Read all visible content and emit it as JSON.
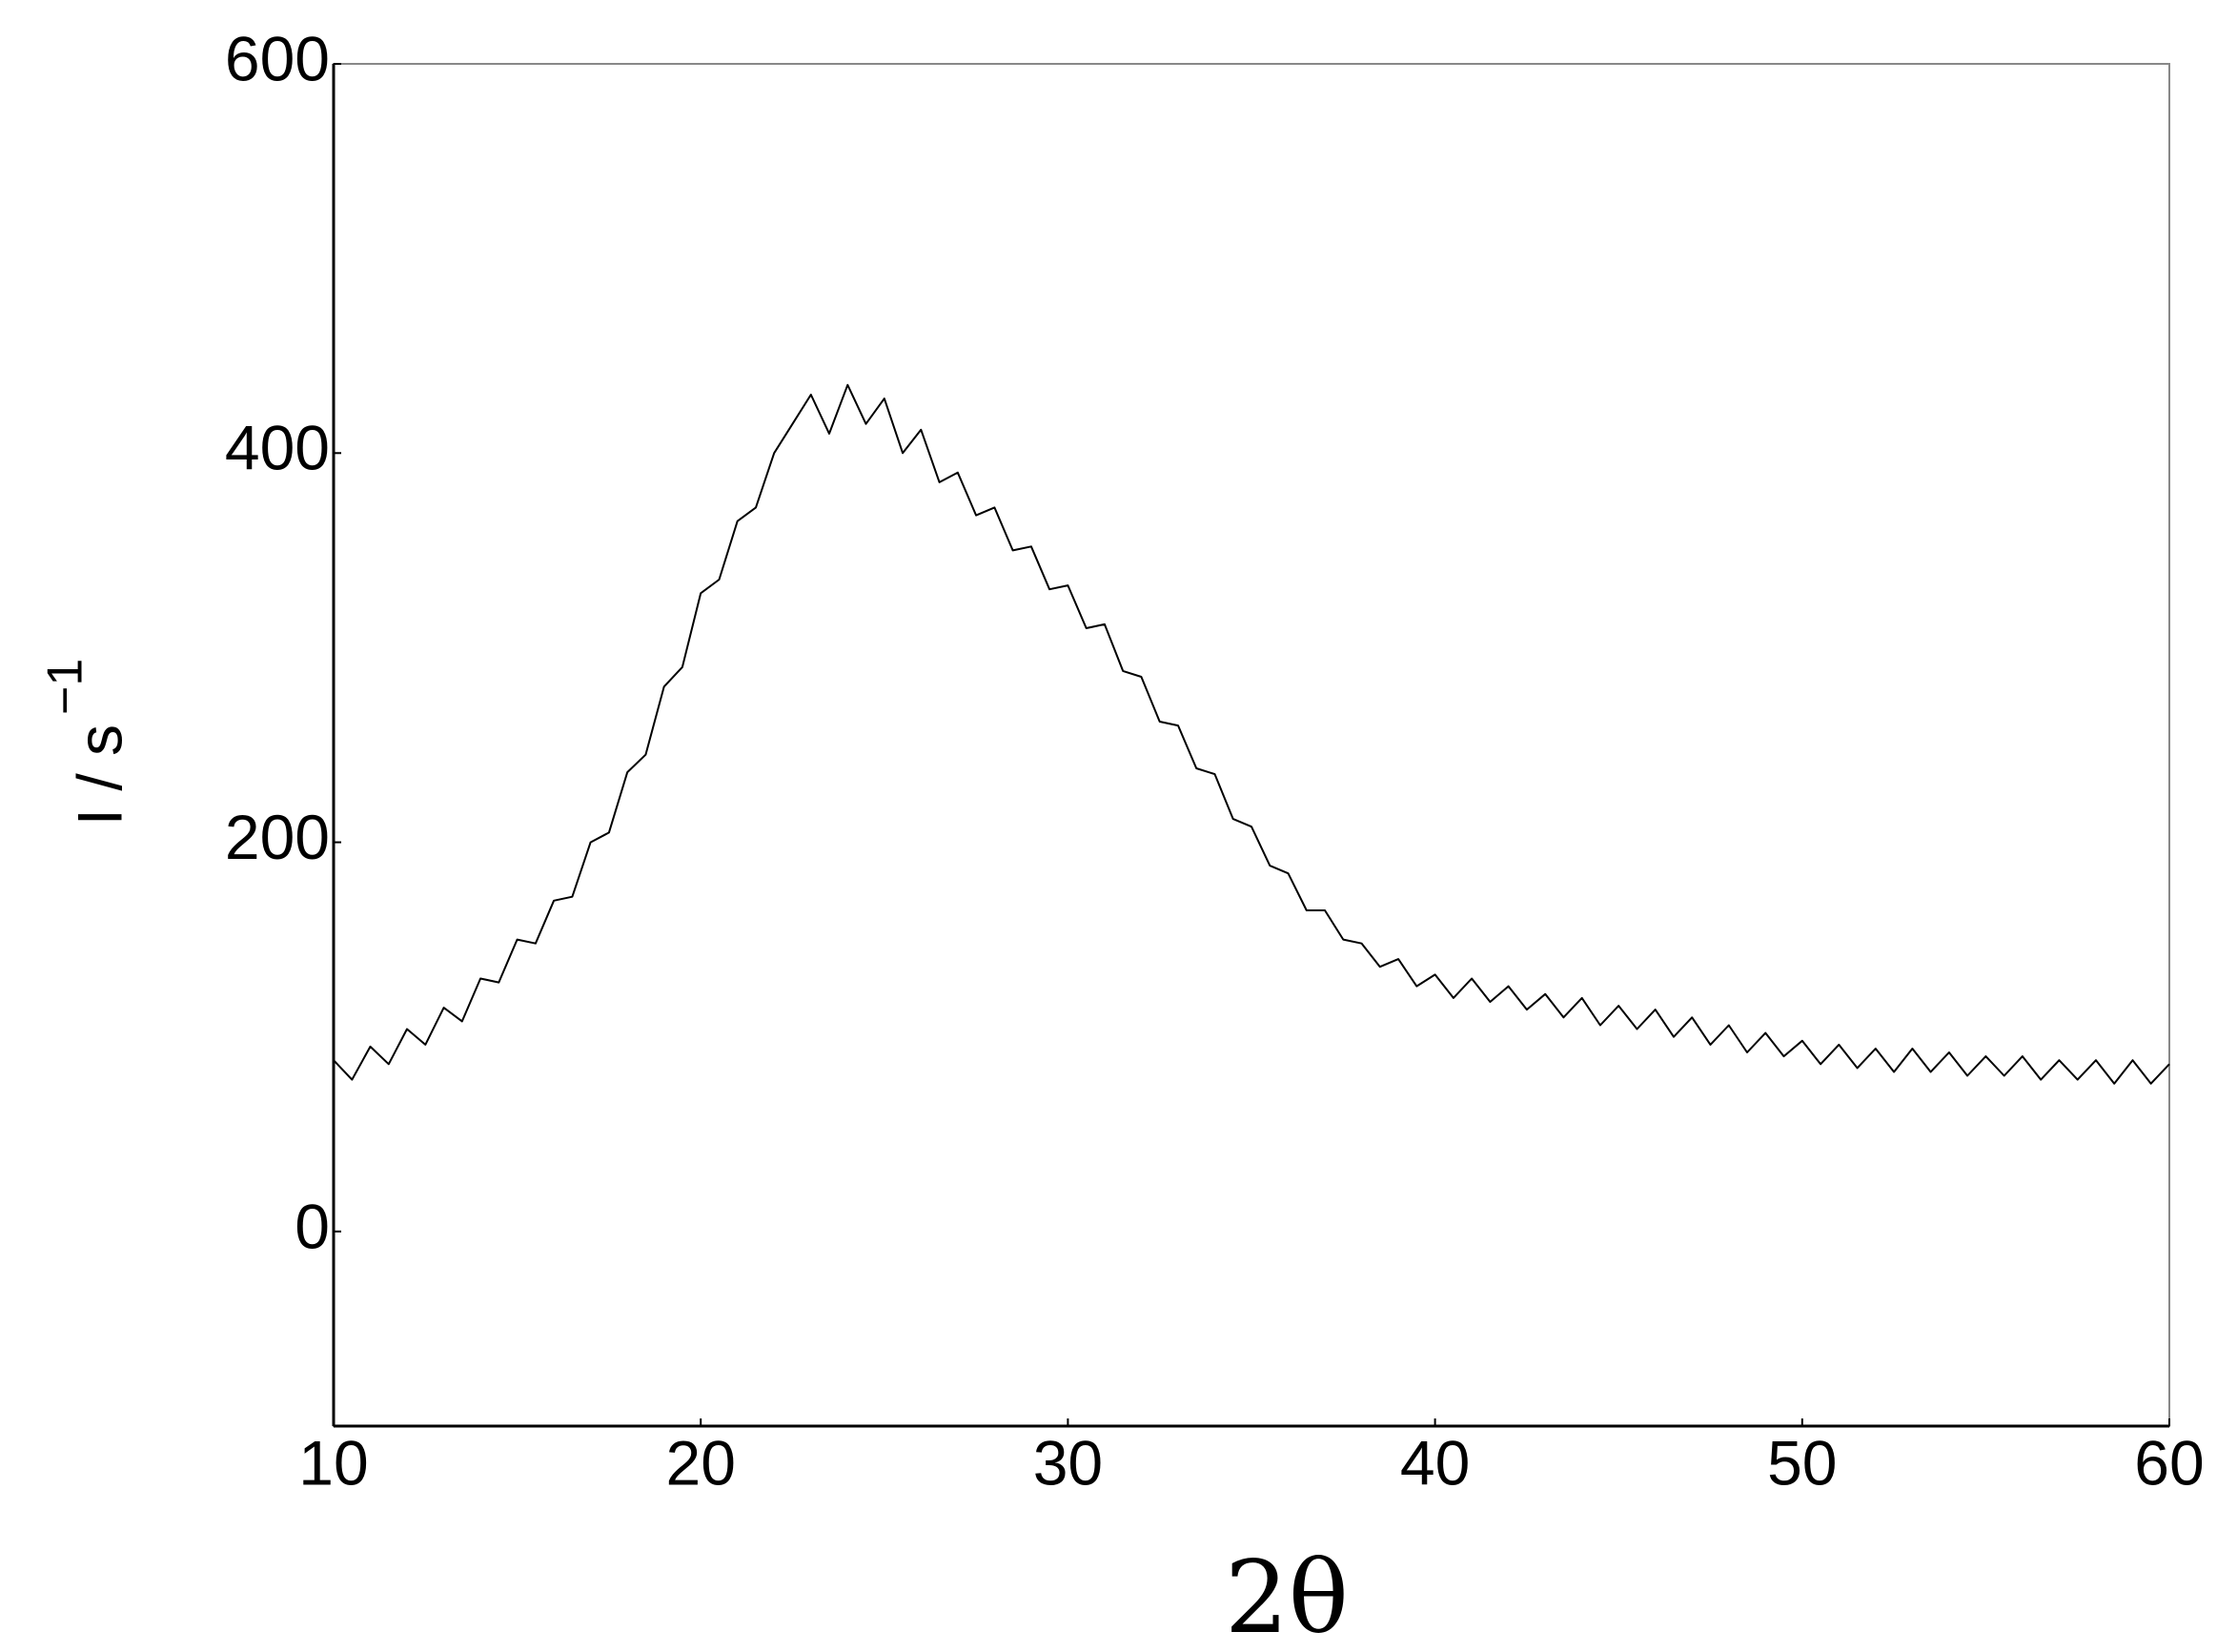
{
  "chart_data": {
    "type": "line",
    "xlabel": "2θ",
    "ylabel": {
      "base": "I / s",
      "sup": "−1"
    },
    "color": "#000000",
    "xlim": [
      10,
      60
    ],
    "xticks": [
      10,
      20,
      30,
      40,
      50,
      60
    ],
    "ylim": [
      -100,
      600
    ],
    "yticks": [
      0,
      200,
      400,
      600
    ],
    "x": [
      10,
      10.5,
      11,
      11.5,
      12,
      12.5,
      13,
      13.5,
      14,
      14.5,
      15,
      15.5,
      16,
      16.5,
      17,
      17.5,
      18,
      18.5,
      19,
      19.5,
      20,
      20.5,
      21,
      21.5,
      22,
      22.5,
      23,
      23.5,
      24,
      24.5,
      25,
      25.5,
      26,
      26.5,
      27,
      27.5,
      28,
      28.5,
      29,
      29.5,
      30,
      30.5,
      31,
      31.5,
      32,
      32.5,
      33,
      33.5,
      34,
      34.5,
      35,
      35.5,
      36,
      36.5,
      37,
      37.5,
      38,
      38.5,
      39,
      39.5,
      40,
      40.5,
      41,
      41.5,
      42,
      42.5,
      43,
      43.5,
      44,
      44.5,
      45,
      45.5,
      46,
      46.5,
      47,
      47.5,
      48,
      48.5,
      49,
      49.5,
      50,
      50.5,
      51,
      51.5,
      52,
      52.5,
      53,
      53.5,
      54,
      54.5,
      55,
      55.5,
      56,
      56.5,
      57,
      57.5,
      58,
      58.5,
      59,
      59.5,
      60
    ],
    "values": [
      88,
      78,
      95,
      86,
      104,
      96,
      115,
      108,
      130,
      128,
      150,
      148,
      170,
      172,
      200,
      205,
      236,
      245,
      280,
      290,
      328,
      335,
      365,
      372,
      400,
      415,
      430,
      410,
      435,
      415,
      428,
      400,
      412,
      385,
      390,
      368,
      372,
      350,
      352,
      330,
      332,
      310,
      312,
      288,
      285,
      262,
      260,
      238,
      235,
      212,
      208,
      188,
      184,
      165,
      165,
      150,
      148,
      136,
      140,
      126,
      132,
      120,
      130,
      118,
      126,
      114,
      122,
      110,
      120,
      106,
      116,
      104,
      114,
      100,
      110,
      96,
      106,
      92,
      102,
      90,
      98,
      86,
      96,
      84,
      94,
      82,
      94,
      82,
      92,
      80,
      90,
      80,
      90,
      78,
      88,
      78,
      88,
      76,
      88,
      76,
      86
    ]
  }
}
